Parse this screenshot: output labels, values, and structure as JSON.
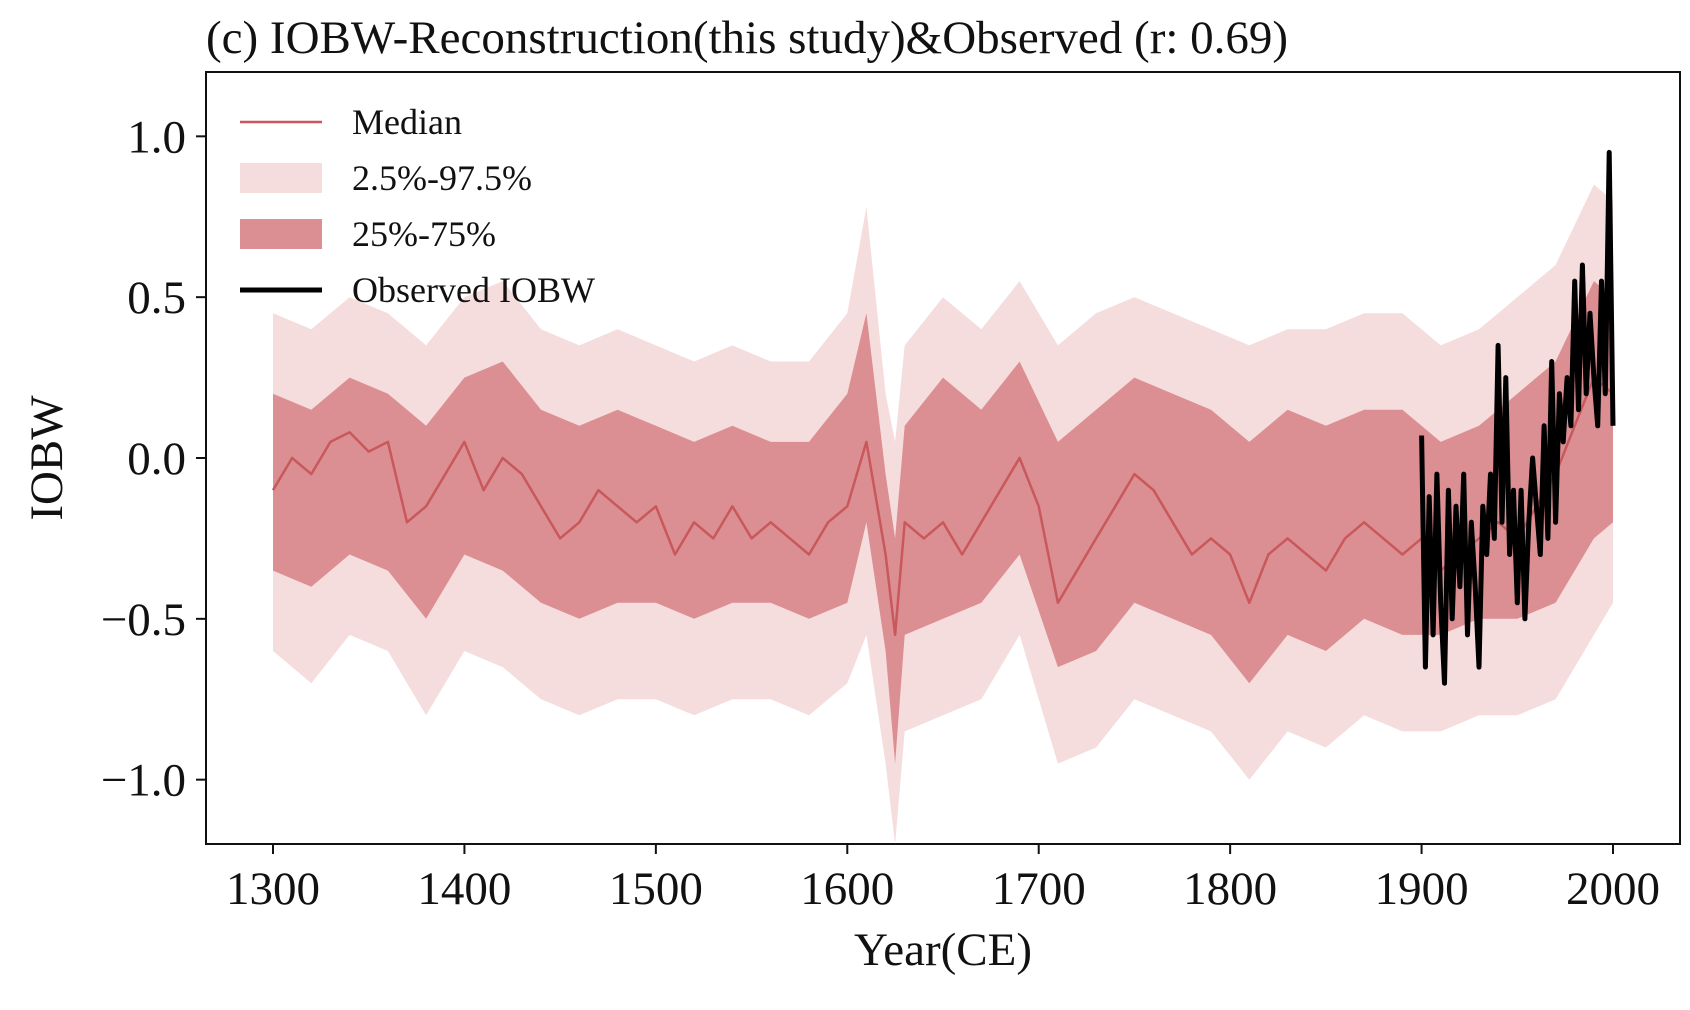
{
  "chart_data": {
    "type": "line",
    "title": "(c) IOBW-Reconstruction(this study)&Observed (r: 0.69)",
    "xlabel": "Year(CE)",
    "ylabel": "IOBW",
    "xlim": [
      1265,
      2035
    ],
    "ylim": [
      -1.2,
      1.2
    ],
    "xticks": [
      1300,
      1400,
      1500,
      1600,
      1700,
      1800,
      1900,
      2000
    ],
    "yticks": [
      1.0,
      0.5,
      0.0,
      -0.5,
      -1.0
    ],
    "xtick_labels": [
      "1300",
      "1400",
      "1500",
      "1600",
      "1700",
      "1800",
      "1900",
      "2000"
    ],
    "ytick_labels": [
      "1.0",
      "0.5",
      "0.0",
      "−0.5",
      "−1.0"
    ],
    "grid": false,
    "legend_position": "top-left",
    "legend": [
      {
        "label": "Median",
        "kind": "line",
        "color": "#c8585c"
      },
      {
        "label": "2.5%-97.5%",
        "kind": "band",
        "color": "#f5dcdd"
      },
      {
        "label": "25%-75%",
        "kind": "band",
        "color": "#dc8f92"
      },
      {
        "label": "Observed IOBW",
        "kind": "line",
        "color": "#000000"
      }
    ],
    "colors": {
      "median": "#c8585c",
      "band_outer": "#f5dcdd",
      "band_inner": "#dc8f92",
      "observed": "#000000"
    },
    "series": [
      {
        "name": "Median",
        "x": [
          1300,
          1310,
          1320,
          1330,
          1340,
          1350,
          1360,
          1370,
          1380,
          1390,
          1400,
          1410,
          1420,
          1430,
          1440,
          1450,
          1460,
          1470,
          1480,
          1490,
          1500,
          1510,
          1520,
          1530,
          1540,
          1550,
          1560,
          1570,
          1580,
          1590,
          1600,
          1610,
          1620,
          1625,
          1630,
          1640,
          1650,
          1660,
          1670,
          1680,
          1690,
          1700,
          1710,
          1720,
          1730,
          1740,
          1750,
          1760,
          1770,
          1780,
          1790,
          1800,
          1810,
          1820,
          1830,
          1840,
          1850,
          1860,
          1870,
          1880,
          1890,
          1900,
          1910,
          1920,
          1930,
          1940,
          1950,
          1960,
          1970,
          1980,
          1990,
          2000
        ],
        "values": [
          -0.1,
          0.0,
          -0.05,
          0.05,
          0.08,
          0.02,
          0.05,
          -0.2,
          -0.15,
          -0.05,
          0.05,
          -0.1,
          0.0,
          -0.05,
          -0.15,
          -0.25,
          -0.2,
          -0.1,
          -0.15,
          -0.2,
          -0.15,
          -0.3,
          -0.2,
          -0.25,
          -0.15,
          -0.25,
          -0.2,
          -0.25,
          -0.3,
          -0.2,
          -0.15,
          0.05,
          -0.3,
          -0.55,
          -0.2,
          -0.25,
          -0.2,
          -0.3,
          -0.2,
          -0.1,
          0.0,
          -0.15,
          -0.45,
          -0.35,
          -0.25,
          -0.15,
          -0.05,
          -0.1,
          -0.2,
          -0.3,
          -0.25,
          -0.3,
          -0.45,
          -0.3,
          -0.25,
          -0.3,
          -0.35,
          -0.25,
          -0.2,
          -0.25,
          -0.3,
          -0.25,
          -0.35,
          -0.3,
          -0.25,
          -0.2,
          -0.25,
          -0.15,
          -0.05,
          0.1,
          0.25,
          0.2
        ]
      },
      {
        "name": "2.5%-97.5%",
        "x": [
          1300,
          1320,
          1340,
          1360,
          1380,
          1400,
          1420,
          1440,
          1460,
          1480,
          1500,
          1520,
          1540,
          1560,
          1580,
          1600,
          1610,
          1620,
          1625,
          1630,
          1650,
          1670,
          1690,
          1710,
          1730,
          1750,
          1770,
          1790,
          1810,
          1830,
          1850,
          1870,
          1890,
          1910,
          1930,
          1950,
          1970,
          1990,
          2000
        ],
        "lower": [
          -0.6,
          -0.7,
          -0.55,
          -0.6,
          -0.8,
          -0.6,
          -0.65,
          -0.75,
          -0.8,
          -0.75,
          -0.75,
          -0.8,
          -0.75,
          -0.75,
          -0.8,
          -0.7,
          -0.55,
          -0.95,
          -1.2,
          -0.85,
          -0.8,
          -0.75,
          -0.55,
          -0.95,
          -0.9,
          -0.75,
          -0.8,
          -0.85,
          -1.0,
          -0.85,
          -0.9,
          -0.8,
          -0.85,
          -0.85,
          -0.8,
          -0.8,
          -0.75,
          -0.55,
          -0.45
        ],
        "upper": [
          0.45,
          0.4,
          0.5,
          0.45,
          0.35,
          0.5,
          0.55,
          0.4,
          0.35,
          0.4,
          0.35,
          0.3,
          0.35,
          0.3,
          0.3,
          0.45,
          0.78,
          0.2,
          0.05,
          0.35,
          0.5,
          0.4,
          0.55,
          0.35,
          0.45,
          0.5,
          0.45,
          0.4,
          0.35,
          0.4,
          0.4,
          0.45,
          0.45,
          0.35,
          0.4,
          0.5,
          0.6,
          0.85,
          0.8
        ]
      },
      {
        "name": "25%-75%",
        "x": [
          1300,
          1320,
          1340,
          1360,
          1380,
          1400,
          1420,
          1440,
          1460,
          1480,
          1500,
          1520,
          1540,
          1560,
          1580,
          1600,
          1610,
          1620,
          1625,
          1630,
          1650,
          1670,
          1690,
          1710,
          1730,
          1750,
          1770,
          1790,
          1810,
          1830,
          1850,
          1870,
          1890,
          1910,
          1930,
          1950,
          1970,
          1990,
          2000
        ],
        "lower": [
          -0.35,
          -0.4,
          -0.3,
          -0.35,
          -0.5,
          -0.3,
          -0.35,
          -0.45,
          -0.5,
          -0.45,
          -0.45,
          -0.5,
          -0.45,
          -0.45,
          -0.5,
          -0.45,
          -0.2,
          -0.6,
          -0.95,
          -0.55,
          -0.5,
          -0.45,
          -0.3,
          -0.65,
          -0.6,
          -0.45,
          -0.5,
          -0.55,
          -0.7,
          -0.55,
          -0.6,
          -0.5,
          -0.55,
          -0.55,
          -0.5,
          -0.5,
          -0.45,
          -0.25,
          -0.2
        ],
        "upper": [
          0.2,
          0.15,
          0.25,
          0.2,
          0.1,
          0.25,
          0.3,
          0.15,
          0.1,
          0.15,
          0.1,
          0.05,
          0.1,
          0.05,
          0.05,
          0.2,
          0.45,
          -0.05,
          -0.25,
          0.1,
          0.25,
          0.15,
          0.3,
          0.05,
          0.15,
          0.25,
          0.2,
          0.15,
          0.05,
          0.15,
          0.1,
          0.15,
          0.15,
          0.05,
          0.1,
          0.2,
          0.3,
          0.55,
          0.5
        ]
      },
      {
        "name": "Observed IOBW",
        "x": [
          1900,
          1902,
          1904,
          1906,
          1908,
          1910,
          1912,
          1914,
          1916,
          1918,
          1920,
          1922,
          1924,
          1926,
          1928,
          1930,
          1932,
          1934,
          1936,
          1938,
          1940,
          1942,
          1944,
          1946,
          1948,
          1950,
          1952,
          1954,
          1956,
          1958,
          1960,
          1962,
          1964,
          1966,
          1968,
          1970,
          1972,
          1974,
          1976,
          1978,
          1980,
          1982,
          1984,
          1986,
          1988,
          1990,
          1992,
          1994,
          1996,
          1998,
          2000
        ],
        "values": [
          0.07,
          -0.65,
          -0.12,
          -0.55,
          -0.05,
          -0.45,
          -0.7,
          -0.1,
          -0.5,
          -0.15,
          -0.4,
          -0.05,
          -0.55,
          -0.2,
          -0.4,
          -0.65,
          -0.15,
          -0.3,
          -0.05,
          -0.25,
          0.35,
          -0.2,
          0.25,
          -0.3,
          -0.1,
          -0.45,
          -0.1,
          -0.5,
          -0.2,
          0.0,
          -0.15,
          -0.3,
          0.1,
          -0.25,
          0.3,
          -0.2,
          0.2,
          0.05,
          0.25,
          0.1,
          0.55,
          0.15,
          0.6,
          0.2,
          0.45,
          0.25,
          0.1,
          0.55,
          0.2,
          0.95,
          0.1
        ]
      }
    ]
  }
}
